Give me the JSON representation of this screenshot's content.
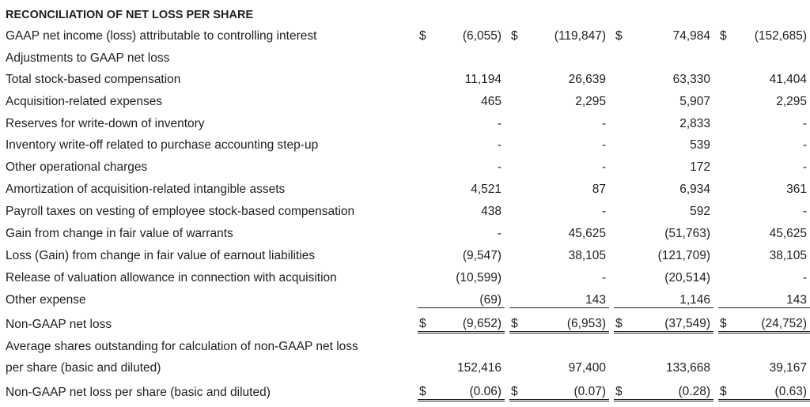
{
  "title": "RECONCILIATION OF NET LOSS PER SHARE",
  "rows": {
    "gaap_net": {
      "label": "GAAP net income (loss) attributable to controlling interest",
      "cur": "$",
      "values": [
        "(6,055)",
        "(119,847)",
        "74,984",
        "(152,685)"
      ]
    },
    "adjustments": {
      "label": "Adjustments to GAAP net loss"
    },
    "stock_comp": {
      "label": "Total stock-based compensation",
      "values": [
        "11,194",
        "26,639",
        "63,330",
        "41,404"
      ]
    },
    "acquisition": {
      "label": "Acquisition-related expenses",
      "values": [
        "465",
        "2,295",
        "5,907",
        "2,295"
      ]
    },
    "reserves": {
      "label": "Reserves for write-down of inventory",
      "values": [
        "-",
        "-",
        "2,833",
        "-"
      ]
    },
    "inventory_writeoff": {
      "label": "Inventory write-off related to purchase accounting step-up",
      "values": [
        "-",
        "-",
        "539",
        "-"
      ]
    },
    "other_operational": {
      "label": "Other operational charges",
      "values": [
        "-",
        "-",
        "172",
        "-"
      ]
    },
    "amortization": {
      "label": "Amortization of acquisition-related intangible assets",
      "values": [
        "4,521",
        "87",
        "6,934",
        "361"
      ]
    },
    "payroll_taxes": {
      "label": "Payroll taxes on vesting of employee stock-based compensation",
      "values": [
        "438",
        "-",
        "592",
        "-"
      ]
    },
    "warrants": {
      "label": "Gain from change in fair value of warrants",
      "values": [
        "-",
        "45,625",
        "(51,763)",
        "45,625"
      ]
    },
    "earnout": {
      "label": "Loss (Gain) from change in fair value of earnout liabilities",
      "values": [
        "(9,547)",
        "38,105",
        "(121,709)",
        "38,105"
      ]
    },
    "valuation_release": {
      "label": "Release of valuation allowance in connection with acquisition",
      "values": [
        "(10,599)",
        "-",
        "(20,514)",
        "-"
      ]
    },
    "other_expense": {
      "label": "Other expense",
      "values": [
        "(69)",
        "143",
        "1,146",
        "143"
      ]
    },
    "non_gaap_net": {
      "label": "Non-GAAP net loss",
      "cur": "$",
      "values": [
        "(9,652)",
        "(6,953)",
        "(37,549)",
        "(24,752)"
      ]
    },
    "avg_shares": {
      "label_line1": "Average shares outstanding for calculation of non-GAAP net loss",
      "label_line2": "per share (basic and diluted)",
      "values": [
        "152,416",
        "97,400",
        "133,668",
        "39,167"
      ]
    },
    "per_share": {
      "label": "Non-GAAP net loss per share (basic and diluted)",
      "cur": "$",
      "values": [
        "(0.06)",
        "(0.07)",
        "(0.28)",
        "(0.63)"
      ]
    }
  }
}
